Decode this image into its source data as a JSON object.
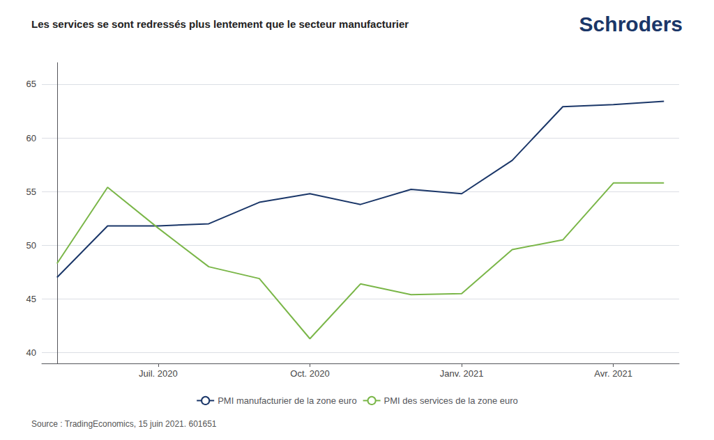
{
  "chart_data": {
    "type": "line",
    "title": "Les services se sont redressés plus lentement que le secteur manufacturier",
    "annotations": [
      "Schroders"
    ],
    "source": "Source : TradingEconomics, 15 juin 2021. 601651",
    "x": [
      0,
      1,
      2,
      3,
      4,
      5,
      6,
      7,
      8,
      9,
      10,
      11,
      12
    ],
    "xlim": [
      -0.3,
      12.3
    ],
    "xticks": [
      {
        "value": 2,
        "label": "Juil. 2020"
      },
      {
        "value": 5,
        "label": "Oct. 2020"
      },
      {
        "value": 8,
        "label": "Janv. 2021"
      },
      {
        "value": 11,
        "label": "Avr. 2021"
      }
    ],
    "ylim": [
      39,
      67
    ],
    "yticks": [
      40,
      45,
      50,
      55,
      60,
      65
    ],
    "grid": true,
    "legend": "bottom",
    "series": [
      {
        "name": "PMI manufacturier de la zone euro",
        "color": "#1a3668",
        "values": [
          47.0,
          51.8,
          51.8,
          52.0,
          54.0,
          54.8,
          53.8,
          55.2,
          54.8,
          57.9,
          62.9,
          63.1,
          63.4
        ]
      },
      {
        "name": "PMI des services de la zone euro",
        "color": "#7ab648",
        "values": [
          48.3,
          55.4,
          51.6,
          48.0,
          46.9,
          41.3,
          46.4,
          45.4,
          45.5,
          49.6,
          50.5,
          55.8,
          55.8
        ]
      }
    ]
  }
}
